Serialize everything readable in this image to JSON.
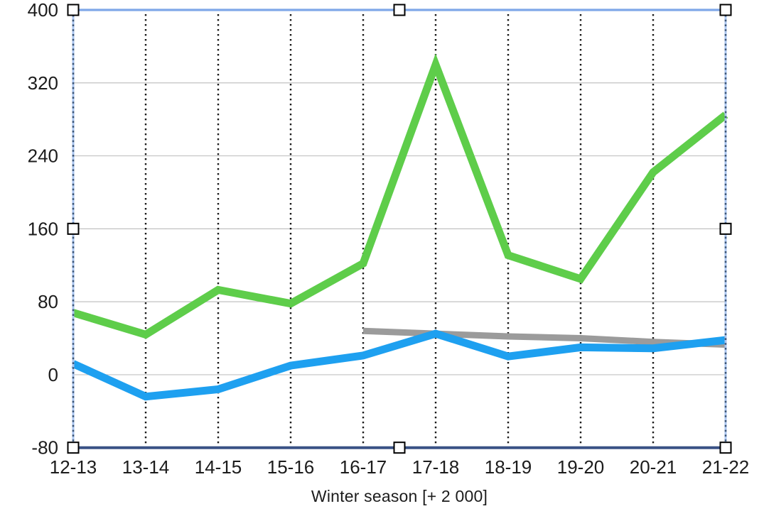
{
  "chart_data": {
    "type": "line",
    "title": "",
    "xlabel": "Winter season [+ 2 000]",
    "ylabel": "",
    "categories": [
      "12-13",
      "13-14",
      "14-15",
      "15-16",
      "16-17",
      "17-18",
      "18-19",
      "19-20",
      "20-21",
      "21-22"
    ],
    "ylim": [
      -80,
      400
    ],
    "yticks": [
      -80,
      0,
      80,
      160,
      240,
      320,
      400
    ],
    "legend": "none",
    "grid": {
      "horizontal": true,
      "horizontal_color": "#c2c2c2",
      "vertical_dotted": true,
      "vertical_dotted_color": "#1a1a1a"
    },
    "series": [
      {
        "name": "green",
        "color": "#5ecd4a",
        "stroke_width": 11,
        "z": 2,
        "values": [
          68,
          44,
          93,
          78,
          122,
          340,
          131,
          105,
          222,
          285
        ]
      },
      {
        "name": "blue",
        "color": "#1ea0f0",
        "stroke_width": 11,
        "z": 3,
        "values": [
          12,
          -24,
          -16,
          10,
          21,
          45,
          20,
          30,
          29,
          38
        ]
      },
      {
        "name": "gray",
        "color": "#9b9b9b",
        "stroke_width": 9,
        "z": 1,
        "values": [
          null,
          null,
          null,
          null,
          48,
          45,
          42,
          40,
          36,
          33
        ]
      }
    ]
  },
  "axes": {
    "tick_color": "#1c1c1c",
    "x_axis_line_color": "#3a5286"
  },
  "selection": {
    "state": "selected",
    "top_border_color": "#7fa7e8",
    "side_border_light_color": "#abc6f0",
    "side_border_dash_color": "#3c5677",
    "handle_fill": "#ffffff",
    "handle_border": "#000000"
  }
}
